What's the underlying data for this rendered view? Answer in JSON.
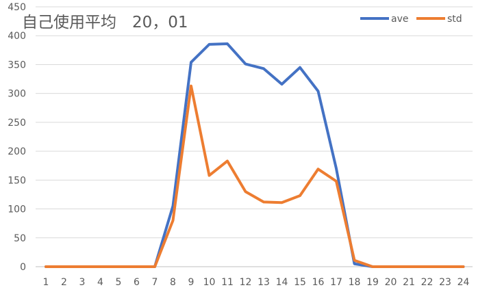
{
  "chart_data": {
    "type": "line",
    "title": "自己使用平均　20，01",
    "xlabel": "",
    "ylabel": "",
    "x": [
      1,
      2,
      3,
      4,
      5,
      6,
      7,
      8,
      9,
      10,
      11,
      12,
      13,
      14,
      15,
      16,
      17,
      18,
      19,
      20,
      21,
      22,
      23,
      24
    ],
    "ylim": [
      0,
      450
    ],
    "yticks": [
      0,
      50,
      100,
      150,
      200,
      250,
      300,
      350,
      400,
      450
    ],
    "grid": true,
    "legend_position": "top-right",
    "series": [
      {
        "name": "ave",
        "color": "#4472C4",
        "values": [
          0,
          0,
          0,
          0,
          0,
          0,
          0,
          105,
          354,
          385,
          386,
          351,
          343,
          316,
          345,
          304,
          170,
          5,
          0,
          0,
          0,
          0,
          0,
          0
        ]
      },
      {
        "name": "std",
        "color": "#ED7D31",
        "values": [
          0,
          0,
          0,
          0,
          0,
          0,
          0,
          80,
          313,
          158,
          183,
          130,
          112,
          111,
          123,
          169,
          148,
          11,
          0,
          0,
          0,
          0,
          0,
          0
        ]
      }
    ]
  }
}
